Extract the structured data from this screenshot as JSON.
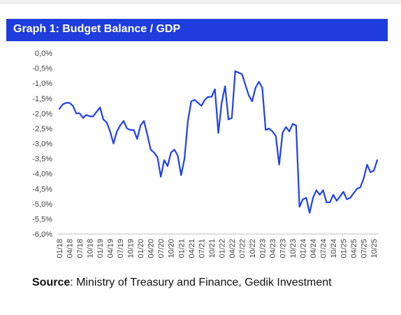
{
  "title": "Graph 1: Budget Balance / GDP",
  "source": {
    "label": "Source",
    "text": ": Ministry of Treasury and Finance, Gedik Investment"
  },
  "colors": {
    "title_bg": "#1f3ddd",
    "line": "#1f3ff0"
  },
  "chart_data": {
    "type": "line",
    "title": "Graph 1: Budget Balance / GDP",
    "xlabel": "",
    "ylabel": "",
    "ylim": [
      -6.0,
      0.0
    ],
    "y_ticks": [
      "0,0%",
      "-0,5%",
      "-1,0%",
      "-1,5%",
      "-2,0%",
      "-2,5%",
      "-3,0%",
      "-3,5%",
      "-4,0%",
      "-4,5%",
      "-5,0%",
      "-5,5%",
      "-6,0%"
    ],
    "x_tick_labels": [
      "01/18",
      "04/18",
      "07/18",
      "10/18",
      "01/19",
      "04/19",
      "07/19",
      "10/19",
      "01/20",
      "04/20",
      "07/20",
      "10/20",
      "01/21",
      "04/21",
      "07/21",
      "10/21",
      "01/22",
      "04/22",
      "07/22",
      "10/22",
      "01/23",
      "04/23",
      "07/23",
      "10/23",
      "01/24",
      "04/24",
      "07/24",
      "10/24",
      "01/25",
      "04/25",
      "07/25",
      "10/25"
    ],
    "grid": false,
    "legend": "none",
    "series": [
      {
        "values": [
          -1.85,
          -1.7,
          -1.65,
          -1.65,
          -1.75,
          -2.0,
          -2.0,
          -2.15,
          -2.05,
          -2.1,
          -2.1,
          -1.95,
          -1.8,
          -2.2,
          -2.3,
          -2.6,
          -3.0,
          -2.6,
          -2.4,
          -2.25,
          -2.5,
          -2.55,
          -2.55,
          -2.85,
          -2.4,
          -2.25,
          -2.7,
          -3.2,
          -3.3,
          -3.45,
          -4.1,
          -3.55,
          -3.75,
          -3.3,
          -3.2,
          -3.4,
          -4.05,
          -3.5,
          -2.25,
          -1.6,
          -1.55,
          -1.65,
          -1.75,
          -1.55,
          -1.45,
          -1.45,
          -1.2,
          -2.65,
          -1.65,
          -1.1,
          -2.2,
          -2.15,
          -0.6,
          -0.65,
          -0.7,
          -1.05,
          -1.4,
          -1.6,
          -1.15,
          -0.95,
          -1.15,
          -2.55,
          -2.5,
          -2.6,
          -2.75,
          -3.7,
          -2.65,
          -2.45,
          -2.6,
          -2.35,
          -2.4,
          -5.1,
          -4.85,
          -4.8,
          -5.3,
          -4.8,
          -4.55,
          -4.7,
          -4.55,
          -4.95,
          -4.95,
          -4.7,
          -4.9,
          -4.75,
          -4.6,
          -4.85,
          -4.8,
          -4.65,
          -4.5,
          -4.45,
          -4.15,
          -3.7,
          -3.95,
          -3.9,
          -3.55
        ]
      }
    ]
  }
}
